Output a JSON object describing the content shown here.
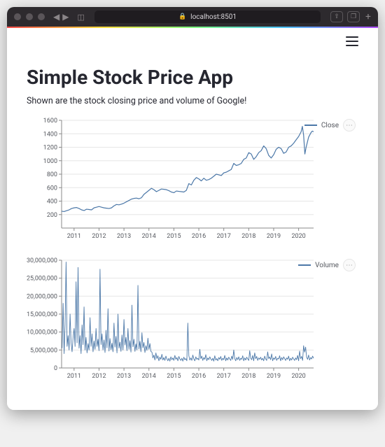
{
  "browser": {
    "url": "localhost:8501"
  },
  "page": {
    "title": "Simple Stock Price App",
    "subtitle": "Shown are the stock closing price and volume of Google!"
  },
  "close_chart": {
    "type": "line",
    "legend_label": "Close",
    "xlim": [
      2010.5,
      2020.6
    ],
    "ylim": [
      0,
      1600
    ],
    "ytick_step": 200,
    "yticks": [
      200,
      400,
      600,
      800,
      1000,
      1200,
      1400,
      1600
    ],
    "xticks": [
      2011,
      2012,
      2013,
      2014,
      2015,
      2016,
      2017,
      2018,
      2019,
      2020
    ],
    "line_color": "#4c78a8",
    "line_width": 1.2,
    "background_color": "#ffffff",
    "grid_color": "#e6e6e6",
    "axis_color": "#888888",
    "label_fontsize": 9,
    "data": [
      [
        2010.5,
        250
      ],
      [
        2010.6,
        245
      ],
      [
        2010.7,
        258
      ],
      [
        2010.8,
        270
      ],
      [
        2010.9,
        290
      ],
      [
        2011.0,
        300
      ],
      [
        2011.1,
        305
      ],
      [
        2011.2,
        290
      ],
      [
        2011.3,
        270
      ],
      [
        2011.4,
        260
      ],
      [
        2011.5,
        280
      ],
      [
        2011.6,
        275
      ],
      [
        2011.7,
        270
      ],
      [
        2011.8,
        300
      ],
      [
        2011.9,
        310
      ],
      [
        2012.0,
        320
      ],
      [
        2012.1,
        310
      ],
      [
        2012.2,
        300
      ],
      [
        2012.3,
        295
      ],
      [
        2012.4,
        290
      ],
      [
        2012.5,
        300
      ],
      [
        2012.6,
        330
      ],
      [
        2012.7,
        350
      ],
      [
        2012.8,
        345
      ],
      [
        2012.9,
        355
      ],
      [
        2013.0,
        370
      ],
      [
        2013.1,
        390
      ],
      [
        2013.2,
        410
      ],
      [
        2013.3,
        430
      ],
      [
        2013.4,
        440
      ],
      [
        2013.5,
        445
      ],
      [
        2013.6,
        435
      ],
      [
        2013.7,
        450
      ],
      [
        2013.8,
        500
      ],
      [
        2013.9,
        530
      ],
      [
        2014.0,
        560
      ],
      [
        2014.1,
        590
      ],
      [
        2014.2,
        570
      ],
      [
        2014.3,
        540
      ],
      [
        2014.4,
        560
      ],
      [
        2014.5,
        580
      ],
      [
        2014.6,
        575
      ],
      [
        2014.7,
        570
      ],
      [
        2014.8,
        555
      ],
      [
        2014.9,
        535
      ],
      [
        2015.0,
        525
      ],
      [
        2015.1,
        550
      ],
      [
        2015.2,
        545
      ],
      [
        2015.3,
        540
      ],
      [
        2015.4,
        535
      ],
      [
        2015.5,
        560
      ],
      [
        2015.6,
        660
      ],
      [
        2015.7,
        640
      ],
      [
        2015.8,
        710
      ],
      [
        2015.9,
        750
      ],
      [
        2016.0,
        730
      ],
      [
        2016.1,
        700
      ],
      [
        2016.2,
        740
      ],
      [
        2016.3,
        710
      ],
      [
        2016.4,
        720
      ],
      [
        2016.5,
        740
      ],
      [
        2016.6,
        770
      ],
      [
        2016.7,
        800
      ],
      [
        2016.8,
        790
      ],
      [
        2016.9,
        780
      ],
      [
        2017.0,
        820
      ],
      [
        2017.1,
        830
      ],
      [
        2017.2,
        850
      ],
      [
        2017.3,
        870
      ],
      [
        2017.4,
        960
      ],
      [
        2017.5,
        930
      ],
      [
        2017.6,
        940
      ],
      [
        2017.7,
        960
      ],
      [
        2017.8,
        1020
      ],
      [
        2017.9,
        1040
      ],
      [
        2018.0,
        1120
      ],
      [
        2018.1,
        1100
      ],
      [
        2018.2,
        1020
      ],
      [
        2018.3,
        1060
      ],
      [
        2018.4,
        1120
      ],
      [
        2018.5,
        1150
      ],
      [
        2018.6,
        1220
      ],
      [
        2018.7,
        1180
      ],
      [
        2018.8,
        1080
      ],
      [
        2018.9,
        1040
      ],
      [
        2019.0,
        1090
      ],
      [
        2019.1,
        1170
      ],
      [
        2019.2,
        1200
      ],
      [
        2019.3,
        1180
      ],
      [
        2019.4,
        1110
      ],
      [
        2019.5,
        1130
      ],
      [
        2019.6,
        1200
      ],
      [
        2019.7,
        1220
      ],
      [
        2019.8,
        1260
      ],
      [
        2019.9,
        1310
      ],
      [
        2020.0,
        1360
      ],
      [
        2020.1,
        1430
      ],
      [
        2020.15,
        1510
      ],
      [
        2020.2,
        1380
      ],
      [
        2020.25,
        1100
      ],
      [
        2020.3,
        1200
      ],
      [
        2020.4,
        1350
      ],
      [
        2020.5,
        1420
      ],
      [
        2020.55,
        1440
      ],
      [
        2020.6,
        1430
      ]
    ]
  },
  "volume_chart": {
    "type": "line",
    "legend_label": "Volume",
    "xlim": [
      2010.5,
      2020.6
    ],
    "ylim": [
      0,
      30000000
    ],
    "ytick_step": 5000000,
    "yticks": [
      0,
      5000000,
      10000000,
      15000000,
      20000000,
      25000000,
      30000000
    ],
    "xticks": [
      2011,
      2012,
      2013,
      2014,
      2015,
      2016,
      2017,
      2018,
      2019,
      2020
    ],
    "line_color": "#4c78a8",
    "line_width": 0.9,
    "background_color": "#ffffff",
    "grid_color": "#e6e6e6",
    "axis_color": "#888888",
    "label_fontsize": 9,
    "ytick_format": "comma",
    "data": [
      [
        2010.52,
        5500000
      ],
      [
        2010.56,
        18000000
      ],
      [
        2010.6,
        4000000
      ],
      [
        2010.64,
        12000000
      ],
      [
        2010.68,
        29500000
      ],
      [
        2010.72,
        6000000
      ],
      [
        2010.76,
        9000000
      ],
      [
        2010.8,
        5000000
      ],
      [
        2010.84,
        15000000
      ],
      [
        2010.88,
        7000000
      ],
      [
        2010.92,
        4500000
      ],
      [
        2010.96,
        8500000
      ],
      [
        2011.0,
        11000000
      ],
      [
        2011.04,
        6000000
      ],
      [
        2011.08,
        24000000
      ],
      [
        2011.12,
        7000000
      ],
      [
        2011.16,
        28000000
      ],
      [
        2011.2,
        5500000
      ],
      [
        2011.24,
        9000000
      ],
      [
        2011.28,
        4000000
      ],
      [
        2011.32,
        12000000
      ],
      [
        2011.36,
        6500000
      ],
      [
        2011.4,
        17000000
      ],
      [
        2011.44,
        5000000
      ],
      [
        2011.48,
        8500000
      ],
      [
        2011.52,
        4200000
      ],
      [
        2011.56,
        6800000
      ],
      [
        2011.6,
        5000000
      ],
      [
        2011.64,
        14000000
      ],
      [
        2011.68,
        6000000
      ],
      [
        2011.72,
        9500000
      ],
      [
        2011.76,
        4500000
      ],
      [
        2011.8,
        7500000
      ],
      [
        2011.84,
        5200000
      ],
      [
        2011.88,
        11000000
      ],
      [
        2011.92,
        6000000
      ],
      [
        2011.96,
        8000000
      ],
      [
        2012.0,
        4800000
      ],
      [
        2012.04,
        27500000
      ],
      [
        2012.08,
        6500000
      ],
      [
        2012.12,
        9500000
      ],
      [
        2012.16,
        5000000
      ],
      [
        2012.2,
        7800000
      ],
      [
        2012.24,
        4300000
      ],
      [
        2012.28,
        10500000
      ],
      [
        2012.32,
        5600000
      ],
      [
        2012.36,
        16500000
      ],
      [
        2012.4,
        4700000
      ],
      [
        2012.44,
        8200000
      ],
      [
        2012.48,
        5100000
      ],
      [
        2012.52,
        6900000
      ],
      [
        2012.56,
        4500000
      ],
      [
        2012.6,
        12500000
      ],
      [
        2012.64,
        5800000
      ],
      [
        2012.68,
        8800000
      ],
      [
        2012.72,
        4200000
      ],
      [
        2012.76,
        15000000
      ],
      [
        2012.8,
        5500000
      ],
      [
        2012.84,
        7200000
      ],
      [
        2012.88,
        4600000
      ],
      [
        2012.92,
        9200000
      ],
      [
        2012.96,
        5000000
      ],
      [
        2013.0,
        13500000
      ],
      [
        2013.04,
        6400000
      ],
      [
        2013.08,
        8500000
      ],
      [
        2013.12,
        4800000
      ],
      [
        2013.16,
        11000000
      ],
      [
        2013.2,
        5200000
      ],
      [
        2013.24,
        7600000
      ],
      [
        2013.28,
        4400000
      ],
      [
        2013.32,
        17500000
      ],
      [
        2013.36,
        5900000
      ],
      [
        2013.4,
        8000000
      ],
      [
        2013.44,
        4600000
      ],
      [
        2013.48,
        6700000
      ],
      [
        2013.52,
        5000000
      ],
      [
        2013.56,
        23000000
      ],
      [
        2013.6,
        5300000
      ],
      [
        2013.64,
        7400000
      ],
      [
        2013.68,
        4500000
      ],
      [
        2013.72,
        9800000
      ],
      [
        2013.76,
        5600000
      ],
      [
        2013.8,
        7100000
      ],
      [
        2013.84,
        4300000
      ],
      [
        2013.88,
        6200000
      ],
      [
        2013.92,
        4900000
      ],
      [
        2013.96,
        8300000
      ],
      [
        2014.0,
        5200000
      ],
      [
        2014.04,
        6800000
      ],
      [
        2014.08,
        4600000
      ],
      [
        2014.12,
        4400000
      ],
      [
        2014.16,
        2800000
      ],
      [
        2014.2,
        3600000
      ],
      [
        2014.24,
        2200000
      ],
      [
        2014.28,
        4200000
      ],
      [
        2014.32,
        2600000
      ],
      [
        2014.36,
        3400000
      ],
      [
        2014.4,
        2000000
      ],
      [
        2014.44,
        3000000
      ],
      [
        2014.48,
        2400000
      ],
      [
        2014.52,
        3800000
      ],
      [
        2014.56,
        2200000
      ],
      [
        2014.6,
        2900000
      ],
      [
        2014.64,
        2100000
      ],
      [
        2014.68,
        3300000
      ],
      [
        2014.72,
        2500000
      ],
      [
        2014.76,
        2000000
      ],
      [
        2014.8,
        2700000
      ],
      [
        2014.84,
        1900000
      ],
      [
        2014.88,
        3100000
      ],
      [
        2014.92,
        2300000
      ],
      [
        2014.96,
        2800000
      ],
      [
        2015.0,
        2100000
      ],
      [
        2015.04,
        3500000
      ],
      [
        2015.08,
        2400000
      ],
      [
        2015.12,
        2900000
      ],
      [
        2015.16,
        2000000
      ],
      [
        2015.2,
        3200000
      ],
      [
        2015.24,
        2500000
      ],
      [
        2015.28,
        2100000
      ],
      [
        2015.32,
        2700000
      ],
      [
        2015.36,
        1900000
      ],
      [
        2015.4,
        3000000
      ],
      [
        2015.44,
        2300000
      ],
      [
        2015.48,
        2600000
      ],
      [
        2015.52,
        2000000
      ],
      [
        2015.56,
        12500000
      ],
      [
        2015.6,
        3400000
      ],
      [
        2015.64,
        2200000
      ],
      [
        2015.68,
        2800000
      ],
      [
        2015.72,
        2100000
      ],
      [
        2015.76,
        3600000
      ],
      [
        2015.8,
        2500000
      ],
      [
        2015.84,
        2000000
      ],
      [
        2015.88,
        3100000
      ],
      [
        2015.92,
        2400000
      ],
      [
        2015.96,
        2700000
      ],
      [
        2016.0,
        2200000
      ],
      [
        2016.04,
        5200000
      ],
      [
        2016.08,
        2600000
      ],
      [
        2016.12,
        3300000
      ],
      [
        2016.16,
        2100000
      ],
      [
        2016.2,
        2900000
      ],
      [
        2016.24,
        2400000
      ],
      [
        2016.28,
        3700000
      ],
      [
        2016.32,
        2000000
      ],
      [
        2016.36,
        2800000
      ],
      [
        2016.4,
        2300000
      ],
      [
        2016.44,
        3100000
      ],
      [
        2016.48,
        2500000
      ],
      [
        2016.52,
        2100000
      ],
      [
        2016.56,
        2700000
      ],
      [
        2016.6,
        1900000
      ],
      [
        2016.64,
        3400000
      ],
      [
        2016.68,
        2200000
      ],
      [
        2016.72,
        2600000
      ],
      [
        2016.76,
        2000000
      ],
      [
        2016.8,
        2900000
      ],
      [
        2016.84,
        2400000
      ],
      [
        2016.88,
        3200000
      ],
      [
        2016.92,
        2100000
      ],
      [
        2016.96,
        2700000
      ],
      [
        2017.0,
        2300000
      ],
      [
        2017.04,
        3500000
      ],
      [
        2017.08,
        2000000
      ],
      [
        2017.12,
        2800000
      ],
      [
        2017.16,
        2200000
      ],
      [
        2017.2,
        3000000
      ],
      [
        2017.24,
        2500000
      ],
      [
        2017.28,
        2100000
      ],
      [
        2017.32,
        3300000
      ],
      [
        2017.36,
        2400000
      ],
      [
        2017.4,
        5000000
      ],
      [
        2017.44,
        2600000
      ],
      [
        2017.48,
        2000000
      ],
      [
        2017.52,
        2900000
      ],
      [
        2017.56,
        2300000
      ],
      [
        2017.6,
        3100000
      ],
      [
        2017.64,
        2100000
      ],
      [
        2017.68,
        2700000
      ],
      [
        2017.72,
        2400000
      ],
      [
        2017.76,
        3400000
      ],
      [
        2017.8,
        2000000
      ],
      [
        2017.84,
        2800000
      ],
      [
        2017.88,
        2200000
      ],
      [
        2017.92,
        3000000
      ],
      [
        2017.96,
        2500000
      ],
      [
        2018.0,
        2100000
      ],
      [
        2018.04,
        4800000
      ],
      [
        2018.08,
        2700000
      ],
      [
        2018.12,
        2300000
      ],
      [
        2018.16,
        3500000
      ],
      [
        2018.2,
        2000000
      ],
      [
        2018.24,
        4200000
      ],
      [
        2018.28,
        2600000
      ],
      [
        2018.32,
        3200000
      ],
      [
        2018.36,
        2100000
      ],
      [
        2018.4,
        2800000
      ],
      [
        2018.44,
        2400000
      ],
      [
        2018.48,
        3000000
      ],
      [
        2018.52,
        2200000
      ],
      [
        2018.56,
        2700000
      ],
      [
        2018.6,
        2000000
      ],
      [
        2018.64,
        3300000
      ],
      [
        2018.68,
        2500000
      ],
      [
        2018.72,
        2100000
      ],
      [
        2018.76,
        4500000
      ],
      [
        2018.8,
        2600000
      ],
      [
        2018.84,
        3100000
      ],
      [
        2018.88,
        2300000
      ],
      [
        2018.92,
        3900000
      ],
      [
        2018.96,
        2000000
      ],
      [
        2019.0,
        2800000
      ],
      [
        2019.04,
        2400000
      ],
      [
        2019.08,
        3200000
      ],
      [
        2019.12,
        2100000
      ],
      [
        2019.16,
        2700000
      ],
      [
        2019.2,
        2500000
      ],
      [
        2019.24,
        3400000
      ],
      [
        2019.28,
        2000000
      ],
      [
        2019.32,
        2900000
      ],
      [
        2019.36,
        2300000
      ],
      [
        2019.4,
        3100000
      ],
      [
        2019.44,
        2600000
      ],
      [
        2019.48,
        2100000
      ],
      [
        2019.52,
        2800000
      ],
      [
        2019.56,
        2400000
      ],
      [
        2019.6,
        3300000
      ],
      [
        2019.64,
        2000000
      ],
      [
        2019.68,
        2700000
      ],
      [
        2019.72,
        2200000
      ],
      [
        2019.76,
        3000000
      ],
      [
        2019.8,
        2500000
      ],
      [
        2019.84,
        2100000
      ],
      [
        2019.88,
        2800000
      ],
      [
        2019.92,
        2300000
      ],
      [
        2019.96,
        3500000
      ],
      [
        2020.0,
        2000000
      ],
      [
        2020.04,
        4700000
      ],
      [
        2020.08,
        2600000
      ],
      [
        2020.12,
        3200000
      ],
      [
        2020.16,
        2100000
      ],
      [
        2020.2,
        6200000
      ],
      [
        2020.24,
        4400000
      ],
      [
        2020.28,
        5800000
      ],
      [
        2020.32,
        3000000
      ],
      [
        2020.36,
        2400000
      ],
      [
        2020.4,
        3600000
      ],
      [
        2020.44,
        2200000
      ],
      [
        2020.48,
        2900000
      ],
      [
        2020.52,
        2500000
      ],
      [
        2020.56,
        3300000
      ],
      [
        2020.6,
        2700000
      ]
    ]
  }
}
